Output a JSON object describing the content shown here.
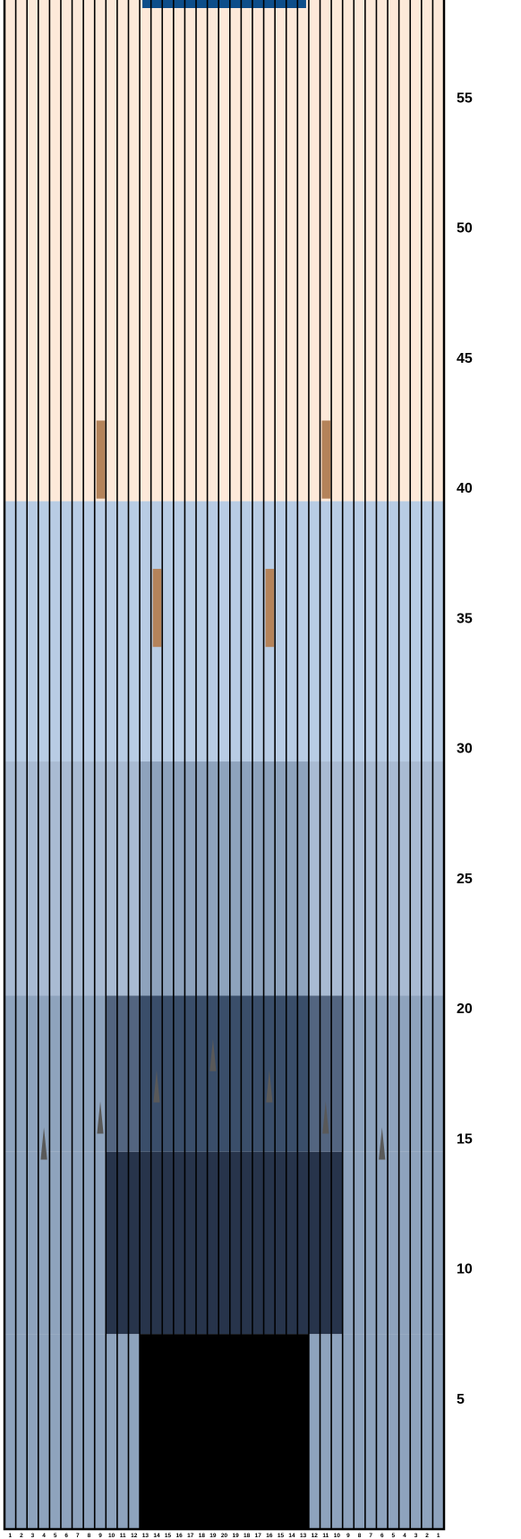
{
  "lane": {
    "board_labels": [
      "1",
      "2",
      "3",
      "4",
      "5",
      "6",
      "7",
      "8",
      "9",
      "10",
      "11",
      "12",
      "13",
      "14",
      "15",
      "16",
      "17",
      "18",
      "19",
      "20",
      "19",
      "18",
      "17",
      "16",
      "15",
      "14",
      "13",
      "12",
      "11",
      "10",
      "9",
      "8",
      "7",
      "6",
      "5",
      "4",
      "3",
      "2",
      "1"
    ],
    "foot_markers": [
      "55",
      "50",
      "45",
      "40",
      "35",
      "30",
      "25",
      "20",
      "15",
      "10",
      "5"
    ],
    "foot_markers_values": [
      55,
      50,
      45,
      40,
      35,
      30,
      25,
      20,
      15,
      10,
      5
    ],
    "colors": {
      "backend": "#fde9d9",
      "midlane": "#c5d9f1",
      "pin_deck": "#0d4e8a",
      "dots": "#b4835a",
      "arrows": "#595959",
      "board_lines": "#000000",
      "oil_levels": [
        "#b8cce4",
        "#a9bbd3",
        "#8ea3bd",
        "#536580",
        "#3a4e6a",
        "#27344b"
      ]
    },
    "oil_pattern": [
      {
        "start_ft": 0,
        "end_ft": 7.5,
        "zones": [
          {
            "from_board": 1,
            "to_board": 12,
            "level": 2
          },
          {
            "from_board": 13,
            "to_board": 27,
            "level": 6
          },
          {
            "from_board": 28,
            "to_board": 39,
            "level": 2
          }
        ]
      },
      {
        "start_ft": 7.5,
        "end_ft": 14.5,
        "zones": [
          {
            "from_board": 1,
            "to_board": 9,
            "level": 2
          },
          {
            "from_board": 10,
            "to_board": 30,
            "level": 5
          },
          {
            "from_board": 31,
            "to_board": 39,
            "level": 2
          }
        ]
      },
      {
        "start_ft": 14.5,
        "end_ft": 20.5,
        "zones": [
          {
            "from_board": 1,
            "to_board": 9,
            "level": 2
          },
          {
            "from_board": 10,
            "to_board": 12,
            "level": 3
          },
          {
            "from_board": 13,
            "to_board": 27,
            "level": 4
          },
          {
            "from_board": 28,
            "to_board": 30,
            "level": 3
          },
          {
            "from_board": 31,
            "to_board": 39,
            "level": 2
          }
        ]
      },
      {
        "start_ft": 20.5,
        "end_ft": 29.5,
        "zones": [
          {
            "from_board": 1,
            "to_board": 12,
            "level": 1
          },
          {
            "from_board": 13,
            "to_board": 27,
            "level": 2
          },
          {
            "from_board": 28,
            "to_board": 39,
            "level": 1
          }
        ]
      },
      {
        "start_ft": 29.5,
        "end_ft": 39.5,
        "zones": [
          {
            "from_board": 1,
            "to_board": 39,
            "level": 0
          }
        ]
      }
    ],
    "arrows": [
      {
        "board": 4,
        "ft": 14.2
      },
      {
        "board": 9,
        "ft": 14.2
      },
      {
        "board": 14,
        "ft": 14.2
      },
      {
        "board": 19,
        "ft": 14.2
      },
      {
        "board": 24,
        "ft": 14.2
      },
      {
        "board": 29,
        "ft": 14.2
      },
      {
        "board": 34,
        "ft": 14.2
      }
    ],
    "dots": [
      {
        "board": 9,
        "from_ft": 39.6,
        "to_ft": 42.6
      },
      {
        "board": 29,
        "from_ft": 39.6,
        "to_ft": 42.6
      },
      {
        "board": 14,
        "from_ft": 33.9,
        "to_ft": 36.9
      },
      {
        "board": 24,
        "from_ft": 33.9,
        "to_ft": 36.9
      }
    ],
    "pin_deck_boards": [
      13,
      27
    ]
  }
}
